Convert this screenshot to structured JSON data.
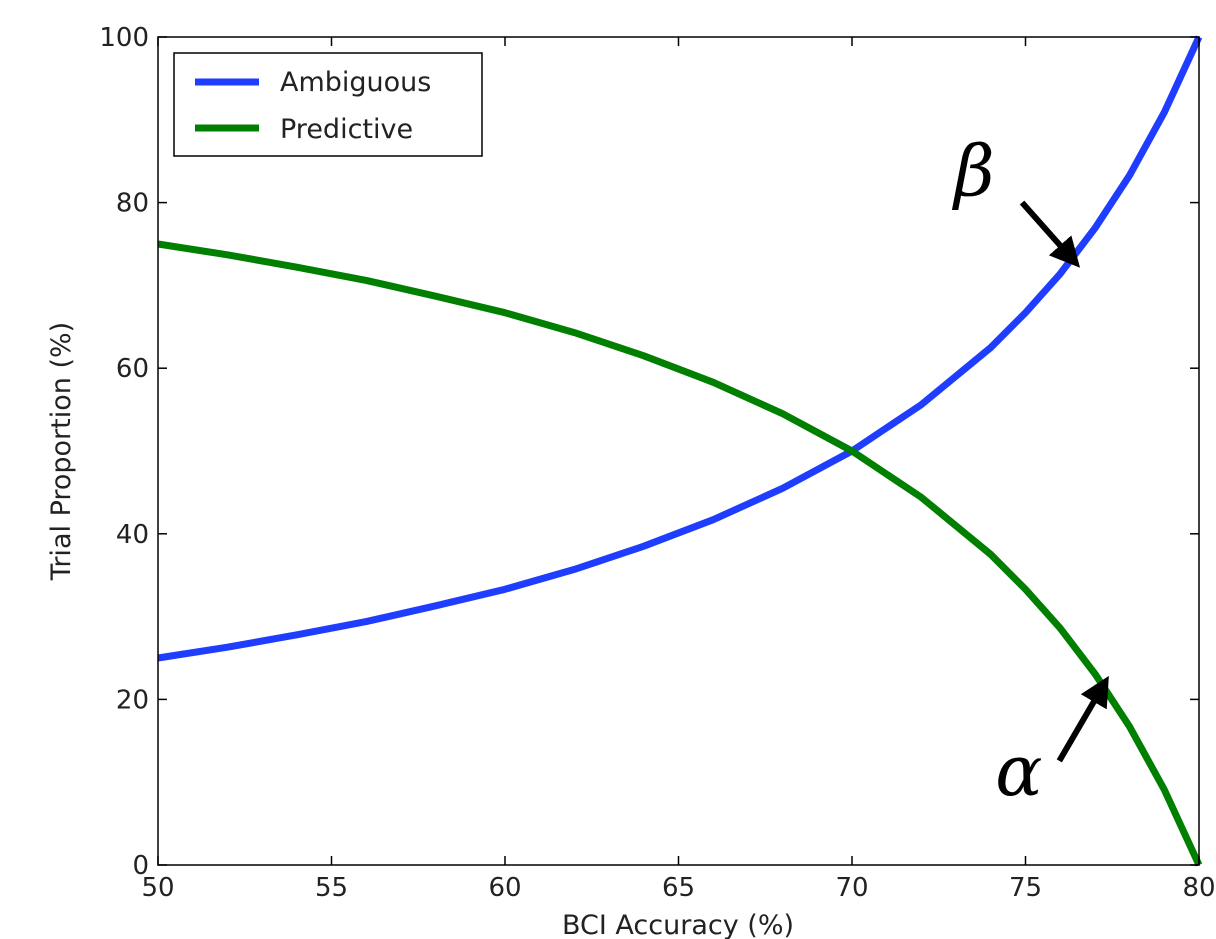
{
  "chart_data": {
    "type": "line",
    "xlabel": "BCI Accuracy (%)",
    "ylabel": "Trial Proportion (%)",
    "xlim": [
      50,
      80
    ],
    "ylim": [
      0,
      100
    ],
    "xticks": [
      50,
      55,
      60,
      65,
      70,
      75,
      80
    ],
    "yticks": [
      0,
      20,
      40,
      60,
      80,
      100
    ],
    "grid": false,
    "legend_position": "upper-left",
    "series": [
      {
        "name": "Ambiguous",
        "color": "#1f3dff",
        "x": [
          50,
          52,
          54,
          56,
          58,
          60,
          62,
          64,
          66,
          68,
          70,
          72,
          74,
          75,
          76,
          77,
          78,
          79,
          80
        ],
        "y": [
          25,
          26.3,
          27.8,
          29.4,
          31.3,
          33.3,
          35.7,
          38.5,
          41.7,
          45.5,
          50,
          55.6,
          62.5,
          66.7,
          71.4,
          76.9,
          83.3,
          90.9,
          100
        ]
      },
      {
        "name": "Predictive",
        "color": "#007f00",
        "x": [
          50,
          52,
          54,
          56,
          58,
          60,
          62,
          64,
          66,
          68,
          70,
          72,
          74,
          75,
          76,
          77,
          78,
          79,
          80
        ],
        "y": [
          75,
          73.7,
          72.2,
          70.6,
          68.7,
          66.7,
          64.3,
          61.5,
          58.3,
          54.5,
          50,
          44.4,
          37.5,
          33.3,
          28.6,
          23.1,
          16.7,
          9.1,
          0
        ]
      }
    ],
    "annotations": [
      {
        "label": "β",
        "x": 76.4,
        "y": 73,
        "series": "Ambiguous"
      },
      {
        "label": "α",
        "x": 77.3,
        "y": 22,
        "series": "Predictive"
      }
    ]
  }
}
